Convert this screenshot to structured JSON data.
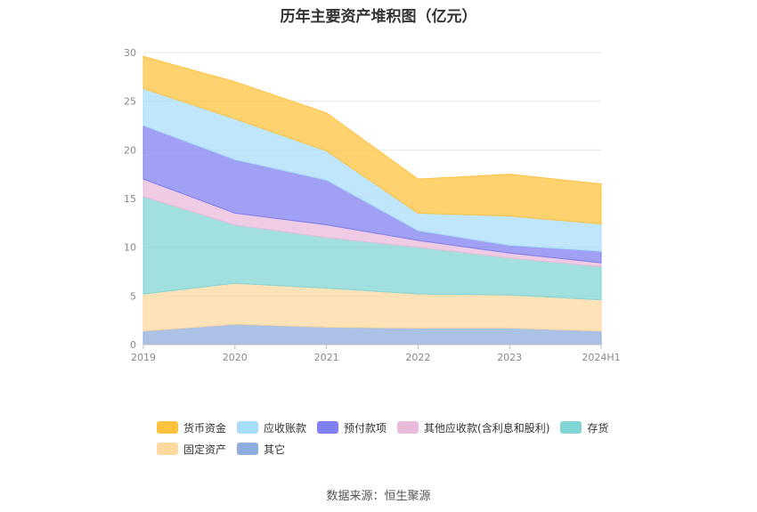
{
  "chart_data": {
    "type": "area",
    "stacked": true,
    "title": "历年主要资产堆积图（亿元）",
    "categories": [
      "2019",
      "2020",
      "2021",
      "2022",
      "2023",
      "2024H1"
    ],
    "ylim": [
      0,
      30
    ],
    "yticks": [
      "0",
      "5",
      "10",
      "15",
      "20",
      "25",
      "30"
    ],
    "grid": true,
    "legend_position": "bottom",
    "series": [
      {
        "name": "其它",
        "color": "#8fadde",
        "values": [
          1.4,
          2.1,
          1.8,
          1.7,
          1.7,
          1.4
        ]
      },
      {
        "name": "固定资产",
        "color": "#fdd9a0",
        "values": [
          3.8,
          4.2,
          4.0,
          3.5,
          3.4,
          3.2
        ]
      },
      {
        "name": "存货",
        "color": "#83d6d6",
        "values": [
          10.0,
          6.0,
          5.2,
          4.8,
          3.8,
          3.4
        ]
      },
      {
        "name": "其他应收款(含利息和股利)",
        "color": "#ebbbdb",
        "values": [
          1.8,
          1.2,
          1.3,
          0.7,
          0.5,
          0.4
        ]
      },
      {
        "name": "预付款项",
        "color": "#8080f0",
        "values": [
          5.5,
          5.5,
          4.6,
          1.0,
          0.8,
          1.2
        ]
      },
      {
        "name": "应收账款",
        "color": "#a9def8",
        "values": [
          3.8,
          4.2,
          3.0,
          1.8,
          3.0,
          2.8
        ]
      },
      {
        "name": "货币资金",
        "color": "#fdc33f",
        "values": [
          3.3,
          3.8,
          3.9,
          3.5,
          4.3,
          4.1
        ]
      }
    ]
  },
  "legend_order": [
    6,
    5,
    4,
    3,
    2,
    1,
    0
  ],
  "source": "数据来源：恒生聚源"
}
